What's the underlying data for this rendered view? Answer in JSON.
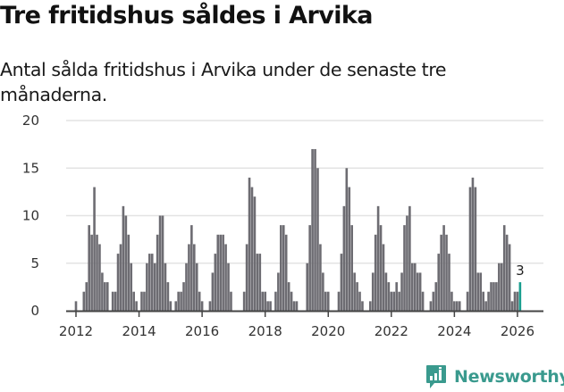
{
  "header": {
    "title": "Tre fritidshus såldes i Arvika",
    "subtitle": "Antal sålda fritidshus i Arvika under de senaste tre månaderna."
  },
  "branding": {
    "logo_text": "Newsworthy",
    "logo_icon": "bar-chart-speech-bubble-icon",
    "color": "#3a9a8e"
  },
  "colors": {
    "bar": "#6d6c72",
    "highlight": "#1a9e8f",
    "grid": "#e3e3e3",
    "axis": "#444444"
  },
  "chart_data": {
    "type": "bar",
    "title": "Tre fritidshus såldes i Arvika",
    "subtitle": "Antal sålda fritidshus i Arvika under de senaste tre månaderna.",
    "xlabel": "",
    "ylabel": "",
    "ylim": [
      0,
      20
    ],
    "yticks": [
      0,
      5,
      10,
      15,
      20
    ],
    "xticks": [
      "2012",
      "2014",
      "2016",
      "2018",
      "2020",
      "2022",
      "2024",
      "2026"
    ],
    "grid": true,
    "legend": null,
    "start_month": "2012-01",
    "end_month": "2026-02",
    "frequency": "monthly",
    "series": [
      {
        "name": "Antal sålda fritidshus",
        "by_year": {
          "2012": [
            1,
            0,
            0,
            2,
            3,
            9,
            8,
            13,
            8,
            7,
            4,
            3
          ],
          "2013": [
            3,
            0,
            2,
            2,
            6,
            7,
            11,
            10,
            8,
            5,
            2,
            1
          ],
          "2014": [
            0,
            2,
            2,
            5,
            6,
            6,
            5,
            8,
            10,
            10,
            5,
            3
          ],
          "2015": [
            1,
            0,
            1,
            2,
            2,
            3,
            5,
            7,
            9,
            7,
            5,
            2
          ],
          "2016": [
            1,
            0,
            0,
            1,
            4,
            6,
            8,
            8,
            8,
            7,
            5,
            2
          ],
          "2017": [
            0,
            0,
            0,
            0,
            2,
            7,
            14,
            13,
            12,
            6,
            6,
            2
          ],
          "2018": [
            2,
            1,
            1,
            0,
            2,
            4,
            9,
            9,
            8,
            3,
            2,
            1
          ],
          "2019": [
            1,
            0,
            0,
            0,
            5,
            9,
            17,
            17,
            15,
            7,
            4,
            2
          ],
          "2020": [
            2,
            0,
            0,
            0,
            2,
            6,
            11,
            15,
            13,
            9,
            4,
            3
          ],
          "2021": [
            2,
            1,
            0,
            0,
            1,
            4,
            8,
            11,
            9,
            7,
            4,
            3
          ],
          "2022": [
            2,
            2,
            3,
            2,
            4,
            9,
            10,
            11,
            5,
            5,
            4,
            4
          ],
          "2023": [
            2,
            0,
            0,
            1,
            2,
            3,
            6,
            8,
            9,
            8,
            6,
            2
          ],
          "2024": [
            1,
            1,
            1,
            0,
            0,
            2,
            13,
            14,
            13,
            4,
            4,
            2
          ],
          "2025": [
            1,
            2,
            3,
            3,
            3,
            5,
            5,
            9,
            8,
            7,
            1,
            2
          ],
          "2026": [
            2,
            3
          ]
        }
      }
    ],
    "annotations": [
      {
        "x": "2026-02",
        "label": "3",
        "highlighted": true
      }
    ]
  }
}
